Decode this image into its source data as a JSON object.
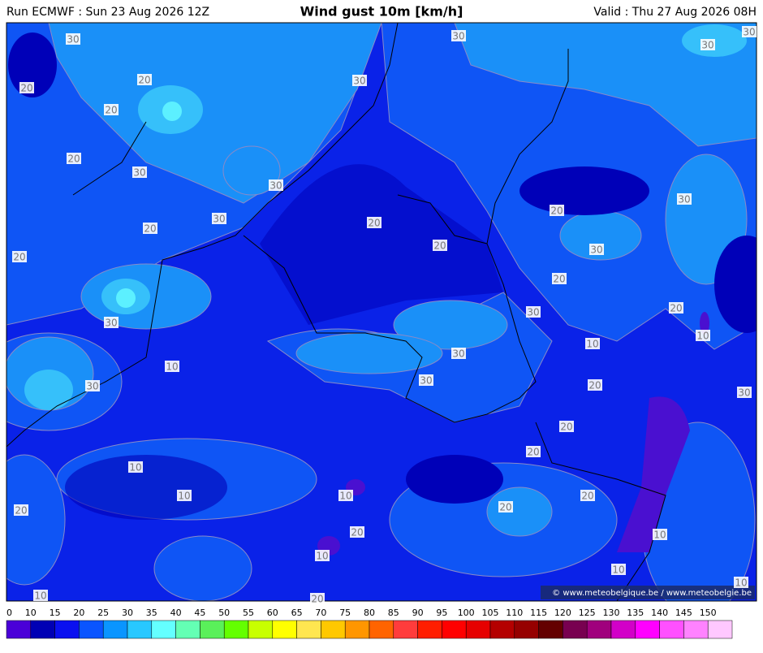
{
  "header": {
    "run": "Run ECMWF : Sun 23 Aug 2026 12Z",
    "title": "Wind gust 10m [km/h]",
    "valid": "Valid : Thu 27 Aug 2026 08H"
  },
  "map": {
    "contour_labels": [
      "30",
      "20",
      "20",
      "20",
      "20",
      "30",
      "30",
      "30",
      "30",
      "30",
      "30",
      "30",
      "20",
      "20",
      "20",
      "20",
      "20",
      "30",
      "30",
      "20",
      "30",
      "30",
      "20",
      "10",
      "10",
      "10",
      "30",
      "30",
      "20",
      "30",
      "30",
      "20",
      "20",
      "10",
      "10",
      "10",
      "20",
      "20",
      "20",
      "20",
      "10",
      "10",
      "10",
      "10",
      "10",
      "20"
    ],
    "credit": "© www.meteobelgique.be / www.meteobelgie.be"
  },
  "colorbar": {
    "ticks": [
      0,
      10,
      15,
      20,
      25,
      30,
      35,
      40,
      45,
      50,
      55,
      60,
      65,
      70,
      75,
      80,
      85,
      90,
      95,
      100,
      105,
      110,
      115,
      120,
      125,
      130,
      135,
      140,
      145,
      150
    ],
    "colors": [
      "#4a00d8",
      "#0000b4",
      "#0a10f0",
      "#0a55ff",
      "#0a95ff",
      "#28c8ff",
      "#64ffff",
      "#64ffb4",
      "#5af05a",
      "#64ff00",
      "#c8ff00",
      "#ffff00",
      "#ffe650",
      "#ffc800",
      "#ff9600",
      "#ff6400",
      "#ff3c3c",
      "#ff1e00",
      "#ff0000",
      "#e60000",
      "#b40000",
      "#960000",
      "#640000",
      "#780050",
      "#a0007d",
      "#d200c8",
      "#ff00ff",
      "#ff50ff",
      "#ff82ff",
      "#ffc8ff"
    ]
  }
}
